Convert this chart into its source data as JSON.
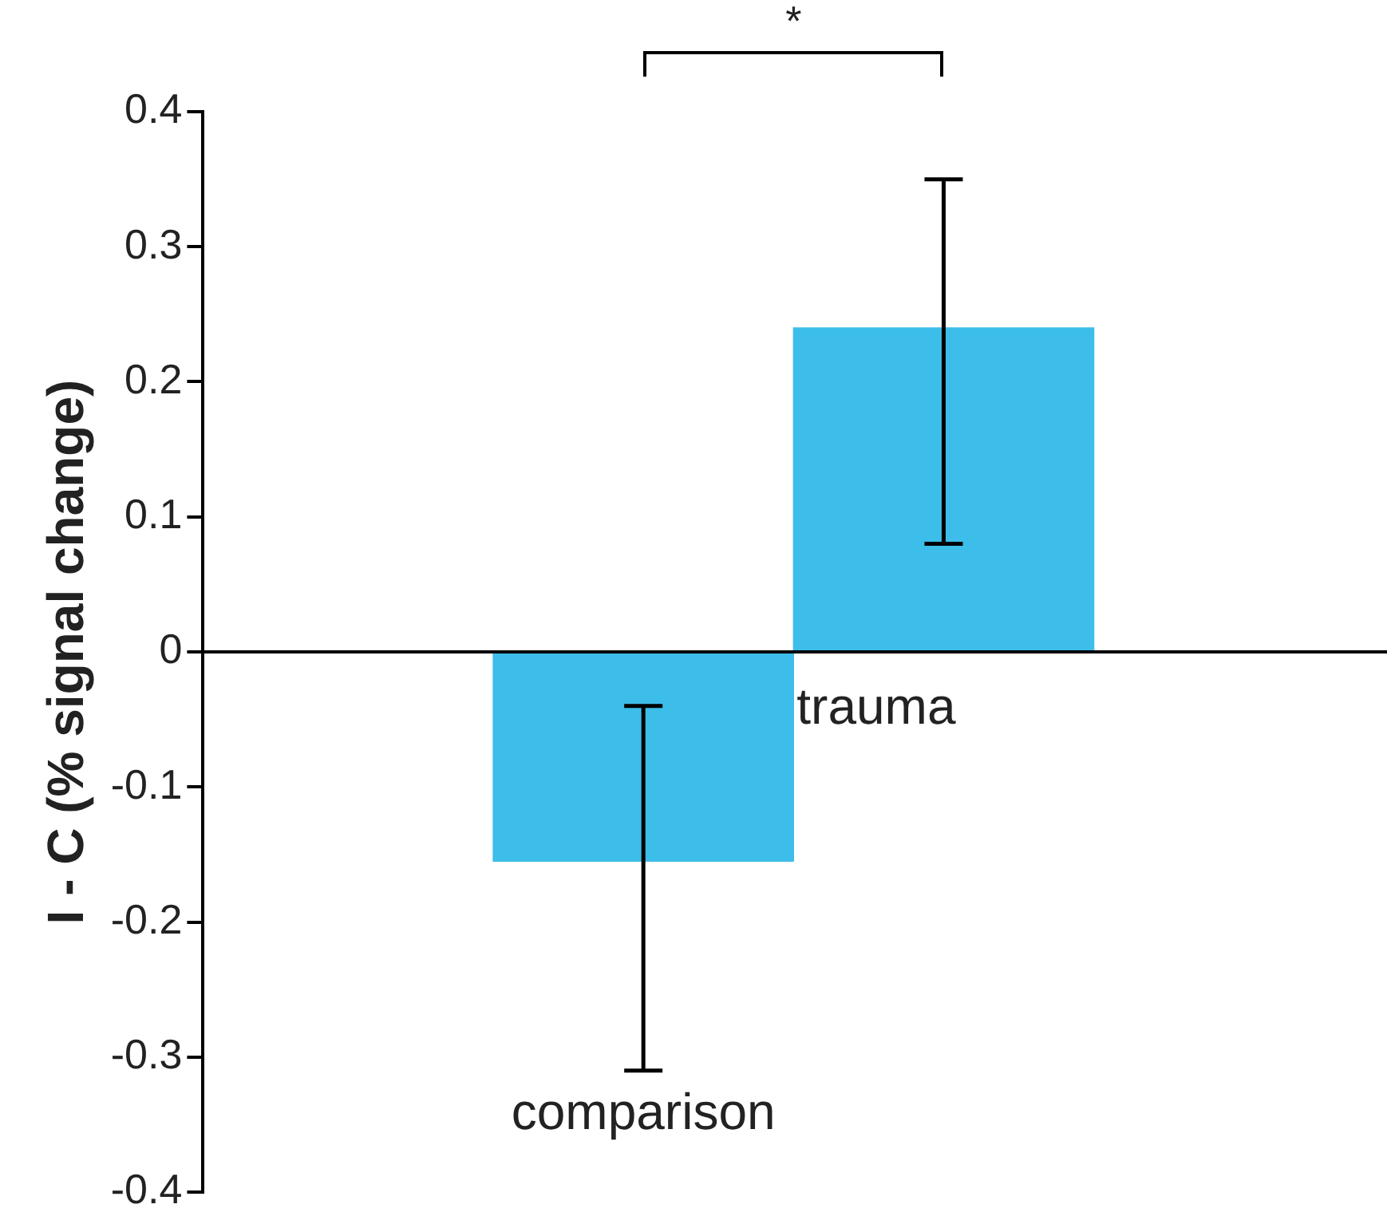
{
  "chart_data": {
    "type": "bar",
    "ylabel": "I - C (% signal change)",
    "categories": [
      "comparison",
      "trauma"
    ],
    "values": [
      -0.155,
      0.24
    ],
    "colors": [
      "#3dbde9",
      "#3dbde9"
    ],
    "errors": [
      [
        -0.31,
        -0.04
      ],
      [
        0.08,
        0.35
      ]
    ],
    "ylim": [
      -0.4,
      0.4
    ],
    "yticks": [
      -0.4,
      -0.3,
      -0.2,
      -0.1,
      0,
      0.1,
      0.2,
      0.3,
      0.4
    ],
    "annotations": [
      "*"
    ],
    "legend": false
  }
}
